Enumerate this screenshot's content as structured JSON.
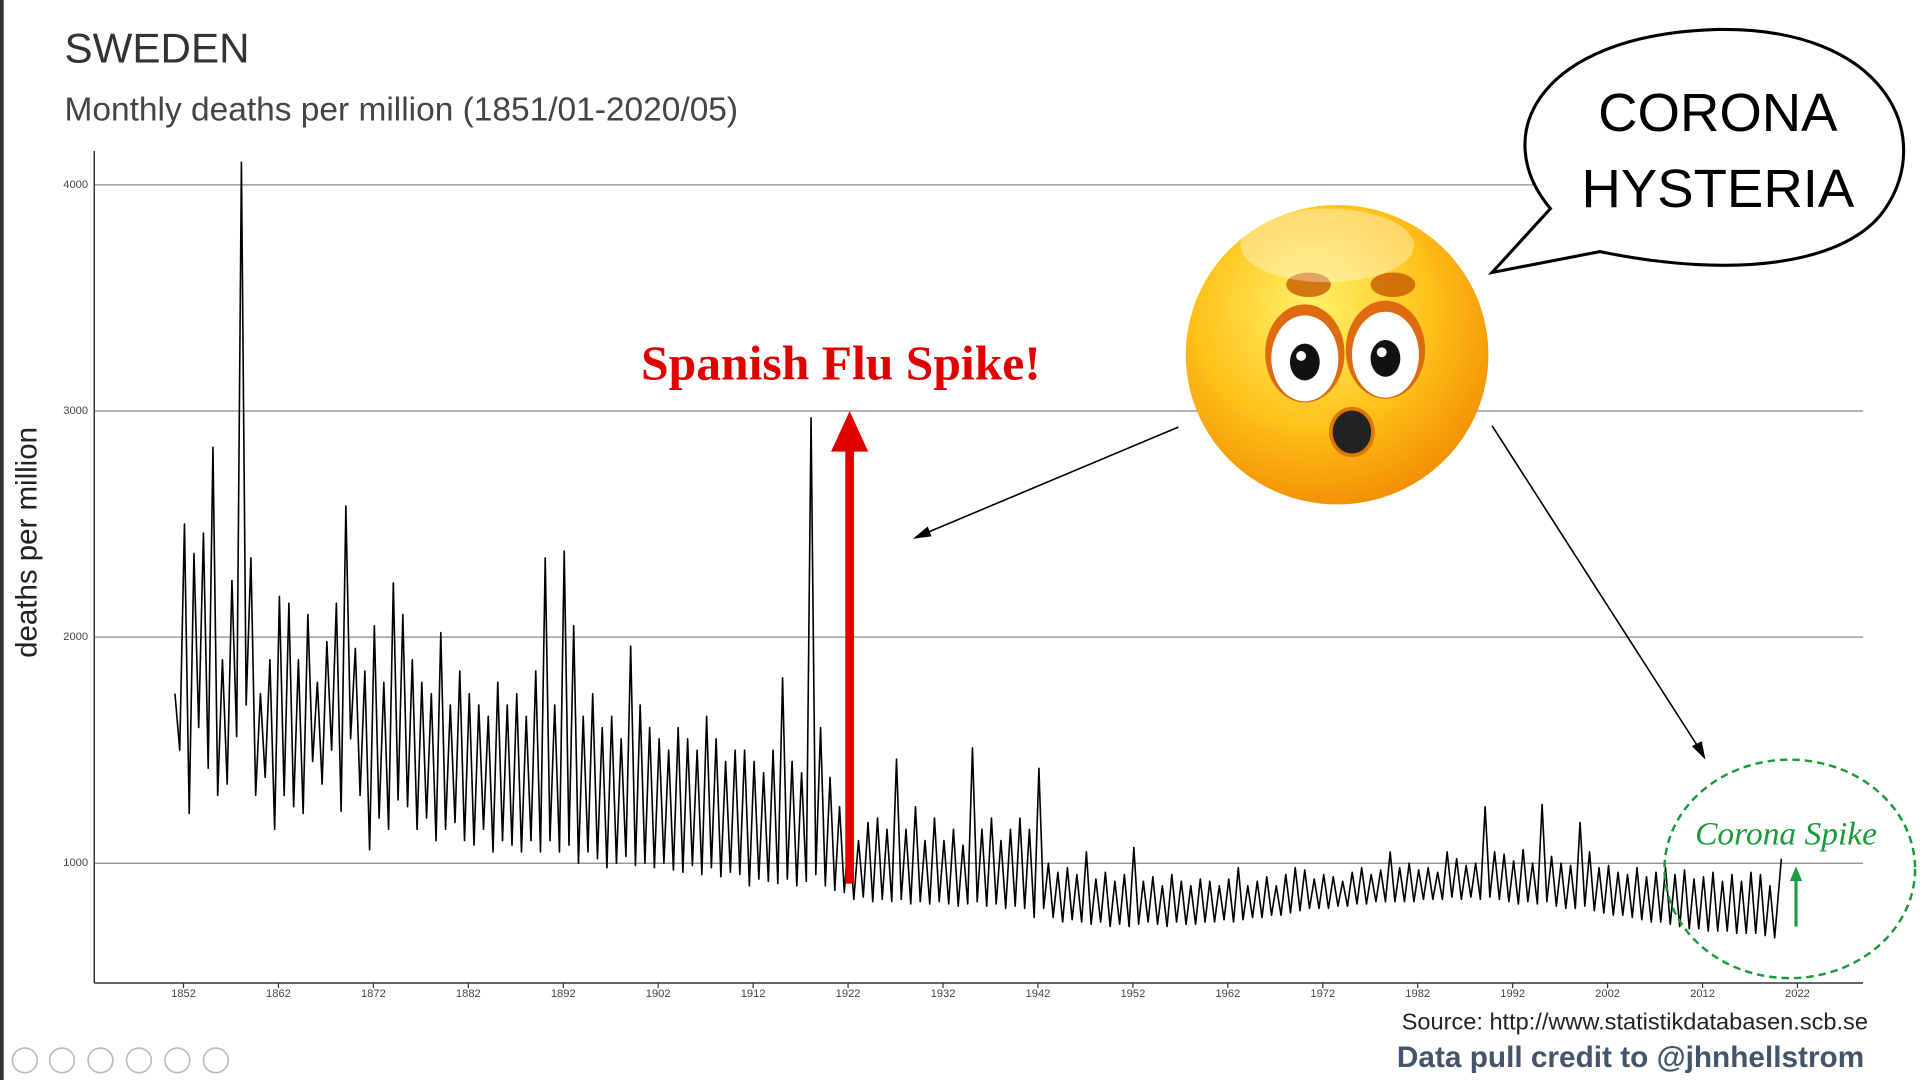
{
  "chart_data": {
    "type": "line",
    "title": "SWEDEN",
    "subtitle": "Monthly deaths per million (1851/01-2020/05)",
    "y_label": "deaths per million",
    "source": "Source: http://www.statistikdatabasen.scb.se",
    "credit": "Data pull credit to @jhnhellstrom",
    "annotations": [
      "Spanish Flu Spike!",
      "Corona Spike",
      "CORONA",
      "HYSTERIA"
    ],
    "color": "#000000",
    "grid": true,
    "xlim": [
      1842.6,
      2028.9
    ],
    "ylim": [
      470,
      4150
    ],
    "xticks": [
      1852,
      1862,
      1872,
      1882,
      1892,
      1902,
      1912,
      1922,
      1932,
      1942,
      1952,
      1962,
      1972,
      1982,
      1992,
      2002,
      2012,
      2022
    ],
    "yticks": [
      1000,
      2000,
      3000,
      4000
    ],
    "x": [
      1851.1,
      1851.6,
      1852.1,
      1852.6,
      1853.1,
      1853.6,
      1854.1,
      1854.6,
      1855.1,
      1855.6,
      1856.1,
      1856.6,
      1857.1,
      1857.6,
      1858.1,
      1858.6,
      1859.1,
      1859.6,
      1860.1,
      1860.6,
      1861.1,
      1861.6,
      1862.1,
      1862.6,
      1863.1,
      1863.6,
      1864.1,
      1864.6,
      1865.1,
      1865.6,
      1866.1,
      1866.6,
      1867.1,
      1867.6,
      1868.1,
      1868.6,
      1869.1,
      1869.6,
      1870.1,
      1870.6,
      1871.1,
      1871.6,
      1872.1,
      1872.6,
      1873.1,
      1873.6,
      1874.1,
      1874.6,
      1875.1,
      1875.6,
      1876.1,
      1876.6,
      1877.1,
      1877.6,
      1878.1,
      1878.6,
      1879.1,
      1879.6,
      1880.1,
      1880.6,
      1881.1,
      1881.6,
      1882.1,
      1882.6,
      1883.1,
      1883.6,
      1884.1,
      1884.6,
      1885.1,
      1885.6,
      1886.1,
      1886.6,
      1887.1,
      1887.6,
      1888.1,
      1888.6,
      1889.1,
      1889.6,
      1890.1,
      1890.6,
      1891.1,
      1891.6,
      1892.1,
      1892.6,
      1893.1,
      1893.6,
      1894.1,
      1894.6,
      1895.1,
      1895.6,
      1896.1,
      1896.6,
      1897.1,
      1897.6,
      1898.1,
      1898.6,
      1899.1,
      1899.6,
      1900.1,
      1900.6,
      1901.1,
      1901.6,
      1902.1,
      1902.6,
      1903.1,
      1903.6,
      1904.1,
      1904.6,
      1905.1,
      1905.6,
      1906.1,
      1906.6,
      1907.1,
      1907.6,
      1908.1,
      1908.6,
      1909.1,
      1909.6,
      1910.1,
      1910.6,
      1911.1,
      1911.6,
      1912.1,
      1912.6,
      1913.1,
      1913.6,
      1914.1,
      1914.6,
      1915.1,
      1915.6,
      1916.1,
      1916.6,
      1917.1,
      1917.6,
      1918.1,
      1918.6,
      1919.1,
      1919.6,
      1920.1,
      1920.6,
      1921.1,
      1921.6,
      1922.1,
      1922.6,
      1923.1,
      1923.6,
      1924.1,
      1924.6,
      1925.1,
      1925.6,
      1926.1,
      1926.6,
      1927.1,
      1927.6,
      1928.1,
      1928.6,
      1929.1,
      1929.6,
      1930.1,
      1930.6,
      1931.1,
      1931.6,
      1932.1,
      1932.6,
      1933.1,
      1933.6,
      1934.1,
      1934.6,
      1935.1,
      1935.6,
      1936.1,
      1936.6,
      1937.1,
      1937.6,
      1938.1,
      1938.6,
      1939.1,
      1939.6,
      1940.1,
      1940.6,
      1941.1,
      1941.6,
      1942.1,
      1942.6,
      1943.1,
      1943.6,
      1944.1,
      1944.6,
      1945.1,
      1945.6,
      1946.1,
      1946.6,
      1947.1,
      1947.6,
      1948.1,
      1948.6,
      1949.1,
      1949.6,
      1950.1,
      1950.6,
      1951.1,
      1951.6,
      1952.1,
      1952.6,
      1953.1,
      1953.6,
      1954.1,
      1954.6,
      1955.1,
      1955.6,
      1956.1,
      1956.6,
      1957.1,
      1957.6,
      1958.1,
      1958.6,
      1959.1,
      1959.6,
      1960.1,
      1960.6,
      1961.1,
      1961.6,
      1962.1,
      1962.6,
      1963.1,
      1963.6,
      1964.1,
      1964.6,
      1965.1,
      1965.6,
      1966.1,
      1966.6,
      1967.1,
      1967.6,
      1968.1,
      1968.6,
      1969.1,
      1969.6,
      1970.1,
      1970.6,
      1971.1,
      1971.6,
      1972.1,
      1972.6,
      1973.1,
      1973.6,
      1974.1,
      1974.6,
      1975.1,
      1975.6,
      1976.1,
      1976.6,
      1977.1,
      1977.6,
      1978.1,
      1978.6,
      1979.1,
      1979.6,
      1980.1,
      1980.6,
      1981.1,
      1981.6,
      1982.1,
      1982.6,
      1983.1,
      1983.6,
      1984.1,
      1984.6,
      1985.1,
      1985.6,
      1986.1,
      1986.6,
      1987.1,
      1987.6,
      1988.1,
      1988.6,
      1989.1,
      1989.6,
      1990.1,
      1990.6,
      1991.1,
      1991.6,
      1992.1,
      1992.6,
      1993.1,
      1993.6,
      1994.1,
      1994.6,
      1995.1,
      1995.6,
      1996.1,
      1996.6,
      1997.1,
      1997.6,
      1998.1,
      1998.6,
      1999.1,
      1999.6,
      2000.1,
      2000.6,
      2001.1,
      2001.6,
      2002.1,
      2002.6,
      2003.1,
      2003.6,
      2004.1,
      2004.6,
      2005.1,
      2005.6,
      2006.1,
      2006.6,
      2007.1,
      2007.6,
      2008.1,
      2008.6,
      2009.1,
      2009.6,
      2010.1,
      2010.6,
      2011.1,
      2011.6,
      2012.1,
      2012.6,
      2013.1,
      2013.6,
      2014.1,
      2014.6,
      2015.1,
      2015.6,
      2016.1,
      2016.6,
      2017.1,
      2017.6,
      2018.1,
      2018.6,
      2019.1,
      2019.6,
      2020.3
    ],
    "values": [
      1750,
      1500,
      2500,
      1220,
      2370,
      1600,
      2460,
      1420,
      2840,
      1300,
      1900,
      1350,
      2250,
      1560,
      4100,
      1700,
      2350,
      1300,
      1750,
      1380,
      1900,
      1150,
      2180,
      1300,
      2150,
      1250,
      1900,
      1220,
      2100,
      1450,
      1800,
      1350,
      1980,
      1500,
      2150,
      1230,
      2580,
      1550,
      1950,
      1300,
      1850,
      1060,
      2050,
      1200,
      1800,
      1150,
      2240,
      1280,
      2100,
      1250,
      1900,
      1150,
      1800,
      1200,
      1750,
      1100,
      2020,
      1150,
      1700,
      1180,
      1850,
      1100,
      1750,
      1080,
      1700,
      1150,
      1650,
      1050,
      1800,
      1100,
      1700,
      1080,
      1750,
      1050,
      1650,
      1100,
      1850,
      1050,
      2350,
      1100,
      1700,
      1050,
      2380,
      1080,
      2050,
      1000,
      1650,
      1050,
      1750,
      1020,
      1600,
      980,
      1650,
      1000,
      1550,
      1030,
      1960,
      990,
      1700,
      1000,
      1600,
      980,
      1550,
      1000,
      1500,
      970,
      1600,
      960,
      1550,
      990,
      1500,
      950,
      1650,
      980,
      1550,
      940,
      1450,
      960,
      1500,
      950,
      1500,
      900,
      1450,
      930,
      1400,
      920,
      1500,
      910,
      1820,
      930,
      1450,
      900,
      1400,
      920,
      2970,
      950,
      1600,
      900,
      1380,
      880,
      1250,
      870,
      1150,
      840,
      1100,
      850,
      1180,
      830,
      1200,
      840,
      1150,
      830,
      1460,
      840,
      1150,
      820,
      1250,
      830,
      1100,
      820,
      1200,
      830,
      1100,
      820,
      1150,
      810,
      1080,
      820,
      1510,
      830,
      1150,
      810,
      1200,
      820,
      1100,
      800,
      1150,
      810,
      1200,
      800,
      1150,
      760,
      1420,
      800,
      1000,
      760,
      960,
      740,
      980,
      750,
      950,
      740,
      1050,
      730,
      930,
      740,
      960,
      720,
      920,
      730,
      950,
      720,
      1070,
      730,
      920,
      740,
      940,
      730,
      900,
      720,
      950,
      740,
      920,
      730,
      900,
      730,
      930,
      740,
      920,
      740,
      900,
      750,
      930,
      740,
      980,
      750,
      900,
      760,
      920,
      760,
      940,
      770,
      900,
      770,
      950,
      780,
      980,
      790,
      970,
      800,
      930,
      800,
      950,
      800,
      940,
      810,
      920,
      810,
      960,
      820,
      980,
      820,
      950,
      830,
      970,
      830,
      1050,
      830,
      980,
      830,
      1000,
      830,
      970,
      840,
      980,
      840,
      960,
      840,
      1050,
      850,
      1020,
      840,
      990,
      850,
      1000,
      840,
      1250,
      850,
      1050,
      840,
      1040,
      830,
      1010,
      820,
      1060,
      830,
      1000,
      820,
      1260,
      830,
      1030,
      810,
      1000,
      800,
      990,
      800,
      1180,
      810,
      1050,
      790,
      980,
      780,
      990,
      770,
      960,
      770,
      950,
      760,
      980,
      750,
      940,
      740,
      960,
      740,
      980,
      730,
      950,
      720,
      970,
      710,
      930,
      710,
      940,
      700,
      960,
      700,
      920,
      700,
      950,
      690,
      920,
      690,
      960,
      690,
      950,
      680,
      900,
      670,
      1020
    ]
  }
}
